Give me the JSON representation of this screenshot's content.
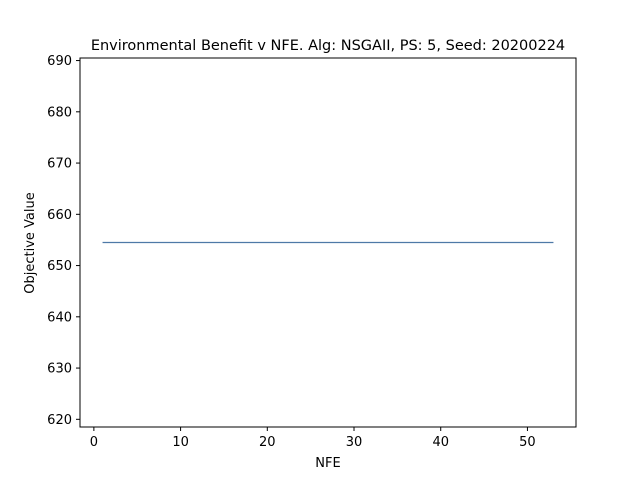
{
  "chart_data": {
    "type": "line",
    "title": "Environmental Benefit v NFE. Alg: NSGAII, PS: 5, Seed: 20200224",
    "xlabel": "NFE",
    "ylabel": "Objective Value",
    "xlim": [
      -1.6,
      55.6
    ],
    "ylim": [
      618.5,
      690.5
    ],
    "xticks": [
      0,
      10,
      20,
      30,
      40,
      50
    ],
    "yticks": [
      620,
      630,
      640,
      650,
      660,
      670,
      680,
      690
    ],
    "grid": false,
    "series": [
      {
        "color": "#4e79a7",
        "x": [
          1,
          53
        ],
        "y": [
          654.5,
          654.5
        ]
      }
    ]
  }
}
